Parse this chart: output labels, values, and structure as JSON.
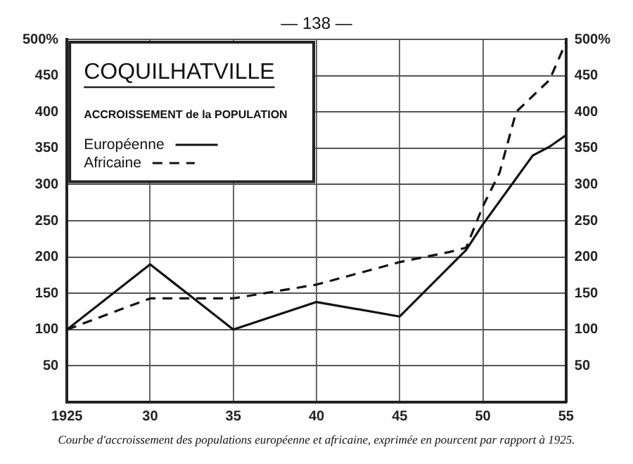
{
  "chart_data": {
    "type": "line",
    "title": "COQUILHATVILLE",
    "subtitle": "ACCROISSEMENT de la POPULATION",
    "annotations": [
      "— 138 —",
      "Courbe d'accroissement des populations européenne et africaine, exprimée en pourcent par rapport à 1925."
    ],
    "series": [
      {
        "name": "Européenne",
        "color": "#111111",
        "line_style": "solid",
        "x": [
          1925,
          1930,
          1935,
          1940,
          1945,
          1949,
          1950,
          1953,
          1954,
          1955
        ],
        "values": [
          100,
          190,
          100,
          138,
          118,
          210,
          245,
          340,
          352,
          368
        ]
      },
      {
        "name": "Africaine",
        "color": "#111111",
        "line_style": "dashed",
        "x": [
          1925,
          1930,
          1935,
          1940,
          1945,
          1948,
          1949,
          1950,
          1951,
          1952,
          1954,
          1955
        ],
        "values": [
          100,
          143,
          143,
          162,
          193,
          207,
          213,
          270,
          316,
          400,
          444,
          496
        ]
      }
    ],
    "xlim": [
      1925,
      1955
    ],
    "xticks": [
      1925,
      {
        "value": 1930,
        "label": "30"
      },
      {
        "value": 1935,
        "label": "35"
      },
      {
        "value": 1940,
        "label": "40"
      },
      {
        "value": 1945,
        "label": "45"
      },
      {
        "value": 1950,
        "label": "50"
      },
      {
        "value": 1955,
        "label": "55"
      }
    ],
    "ylim": [
      0,
      500
    ],
    "yticks": [
      50,
      100,
      150,
      200,
      250,
      300,
      350,
      400,
      450,
      {
        "value": 500,
        "label": "500%"
      }
    ],
    "y2lim": [
      0,
      500
    ],
    "y2ticks": [
      50,
      100,
      150,
      200,
      250,
      300,
      350,
      400,
      450,
      {
        "value": 500,
        "label": "500%"
      }
    ],
    "grid": true,
    "legend": "top left",
    "marker": "none"
  }
}
